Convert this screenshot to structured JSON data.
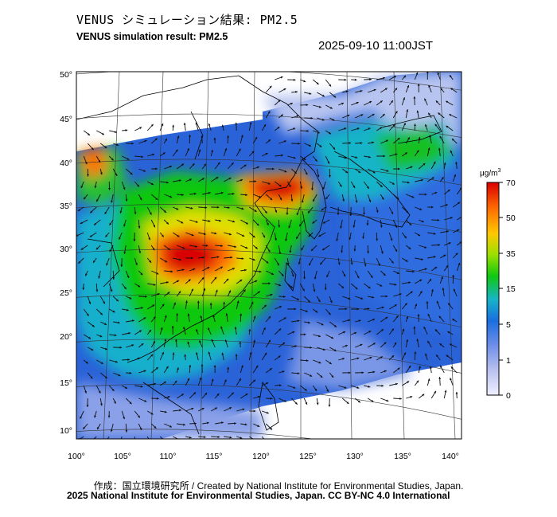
{
  "title_jp": "VENUS シミュレーション結果: PM2.5",
  "title_en": "VENUS simulation result: PM2.5",
  "timestamp": "2025-09-10 11:00JST",
  "map": {
    "lat_ticks": [
      "50°",
      "45°",
      "40°",
      "35°",
      "30°",
      "25°",
      "20°",
      "15°",
      "10°"
    ],
    "lon_ticks": [
      "100°",
      "105°",
      "110°",
      "115°",
      "120°",
      "125°",
      "130°",
      "135°",
      "140°"
    ]
  },
  "colorbar": {
    "unit": "μg/m",
    "unit_sup": "3",
    "labels": [
      "70",
      "50",
      "35",
      "15",
      "5",
      "1",
      "0"
    ],
    "colors": [
      "#d90000",
      "#ff6a00",
      "#ffc800",
      "#9be000",
      "#10c810",
      "#16b4c8",
      "#1a6ee0",
      "#6a8ce8",
      "#b8c0f0",
      "#f0f0ff"
    ]
  },
  "credit_line1": "作成：国立環境研究所 / Created by National Institute for Environmental Studies, Japan.",
  "credit_line2": "2025 National Institute for Environmental Studies, Japan. CC BY-NC 4.0 International"
}
